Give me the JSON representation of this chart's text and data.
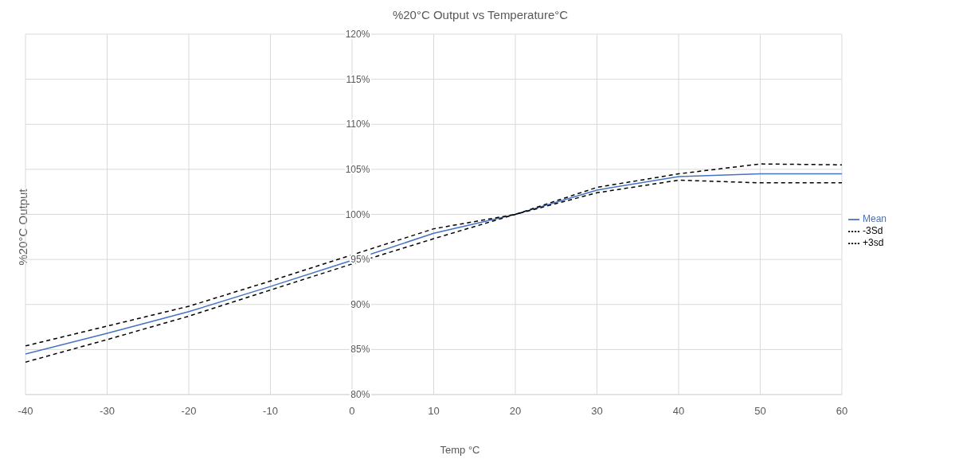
{
  "chart_data": {
    "type": "line",
    "title": "%20°C Output vs Temperature°C",
    "xlabel": "Temp °C",
    "ylabel": "%20°C Output",
    "x": [
      -40,
      -30,
      -20,
      -10,
      0,
      10,
      20,
      30,
      40,
      50,
      60
    ],
    "series": [
      {
        "name": "Mean",
        "color": "#4472c4",
        "line_style": "solid",
        "values": [
          84.5,
          86.8,
          89.2,
          92.0,
          94.9,
          97.9,
          100,
          102.7,
          104.2,
          104.5,
          104.5
        ]
      },
      {
        "name": "-3Sd",
        "color": "#000000",
        "line_style": "dashed",
        "values": [
          83.6,
          86.1,
          88.7,
          91.6,
          94.5,
          97.3,
          100,
          102.4,
          103.8,
          103.5,
          103.5
        ]
      },
      {
        "name": "+3sd",
        "color": "#000000",
        "line_style": "dashed",
        "values": [
          85.4,
          87.6,
          89.8,
          92.6,
          95.5,
          98.4,
          100,
          103.0,
          104.5,
          105.6,
          105.5
        ]
      }
    ],
    "xlim": [
      -40,
      60
    ],
    "xticks": [
      -40,
      -30,
      -20,
      -10,
      0,
      10,
      20,
      30,
      40,
      50,
      60
    ],
    "ylim": [
      80,
      120
    ],
    "yticks": [
      {
        "value": 80,
        "label": "80%"
      },
      {
        "value": 85,
        "label": "85%"
      },
      {
        "value": 90,
        "label": "90%"
      },
      {
        "value": 95,
        "label": "95%"
      },
      {
        "value": 100,
        "label": "100%"
      },
      {
        "value": 105,
        "label": "105%"
      },
      {
        "value": 110,
        "label": "110%"
      },
      {
        "value": 115,
        "label": "115%"
      },
      {
        "value": 120,
        "label": "120%"
      }
    ],
    "grid": true,
    "legend": "right",
    "marker": "none"
  }
}
